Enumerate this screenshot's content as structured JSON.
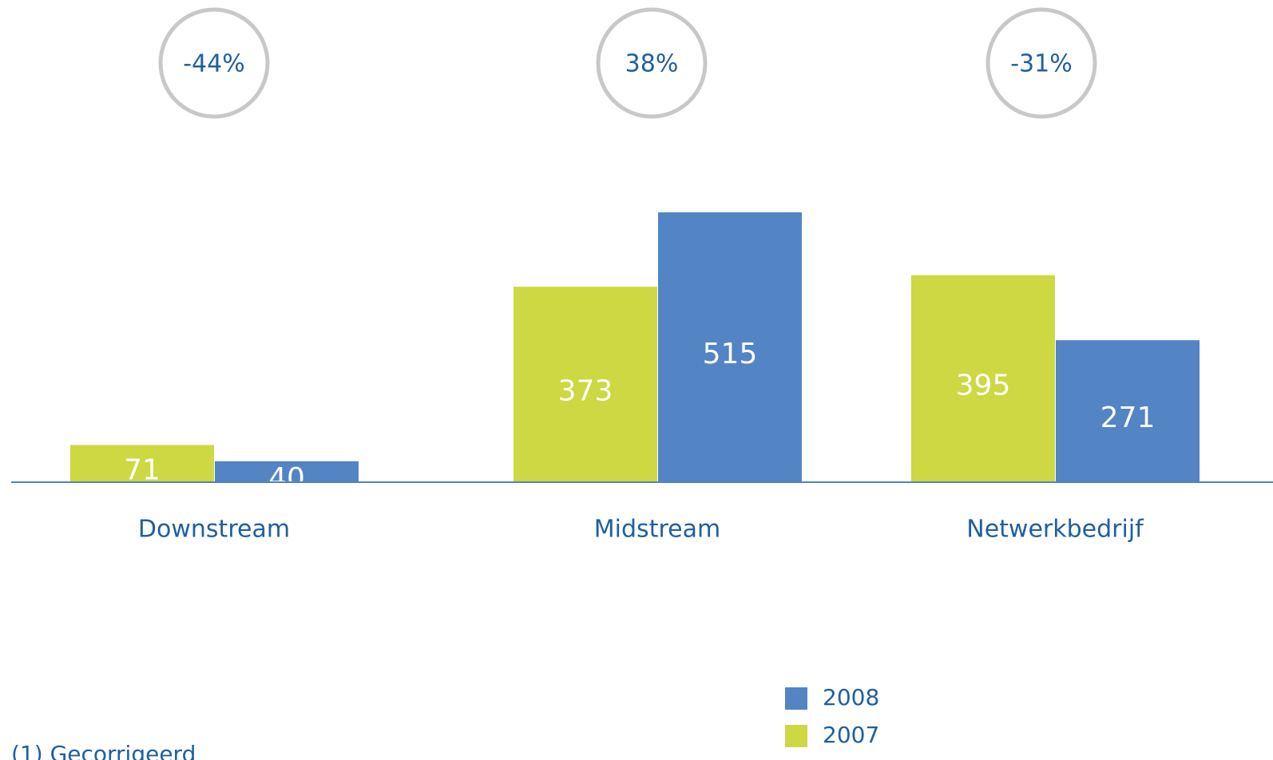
{
  "chart_data": {
    "type": "bar",
    "categories": [
      "Downstream",
      "Midstream",
      "Netwerkbedrijf"
    ],
    "series": [
      {
        "name": "2007",
        "color": "#cdd843",
        "values": [
          71,
          373,
          395
        ]
      },
      {
        "name": "2008",
        "color": "#5384c4",
        "values": [
          40,
          515,
          271
        ]
      }
    ],
    "annotations": [
      "-44%",
      "38%",
      "-31%"
    ],
    "footnote": "(1) Gecorrigeerd"
  }
}
